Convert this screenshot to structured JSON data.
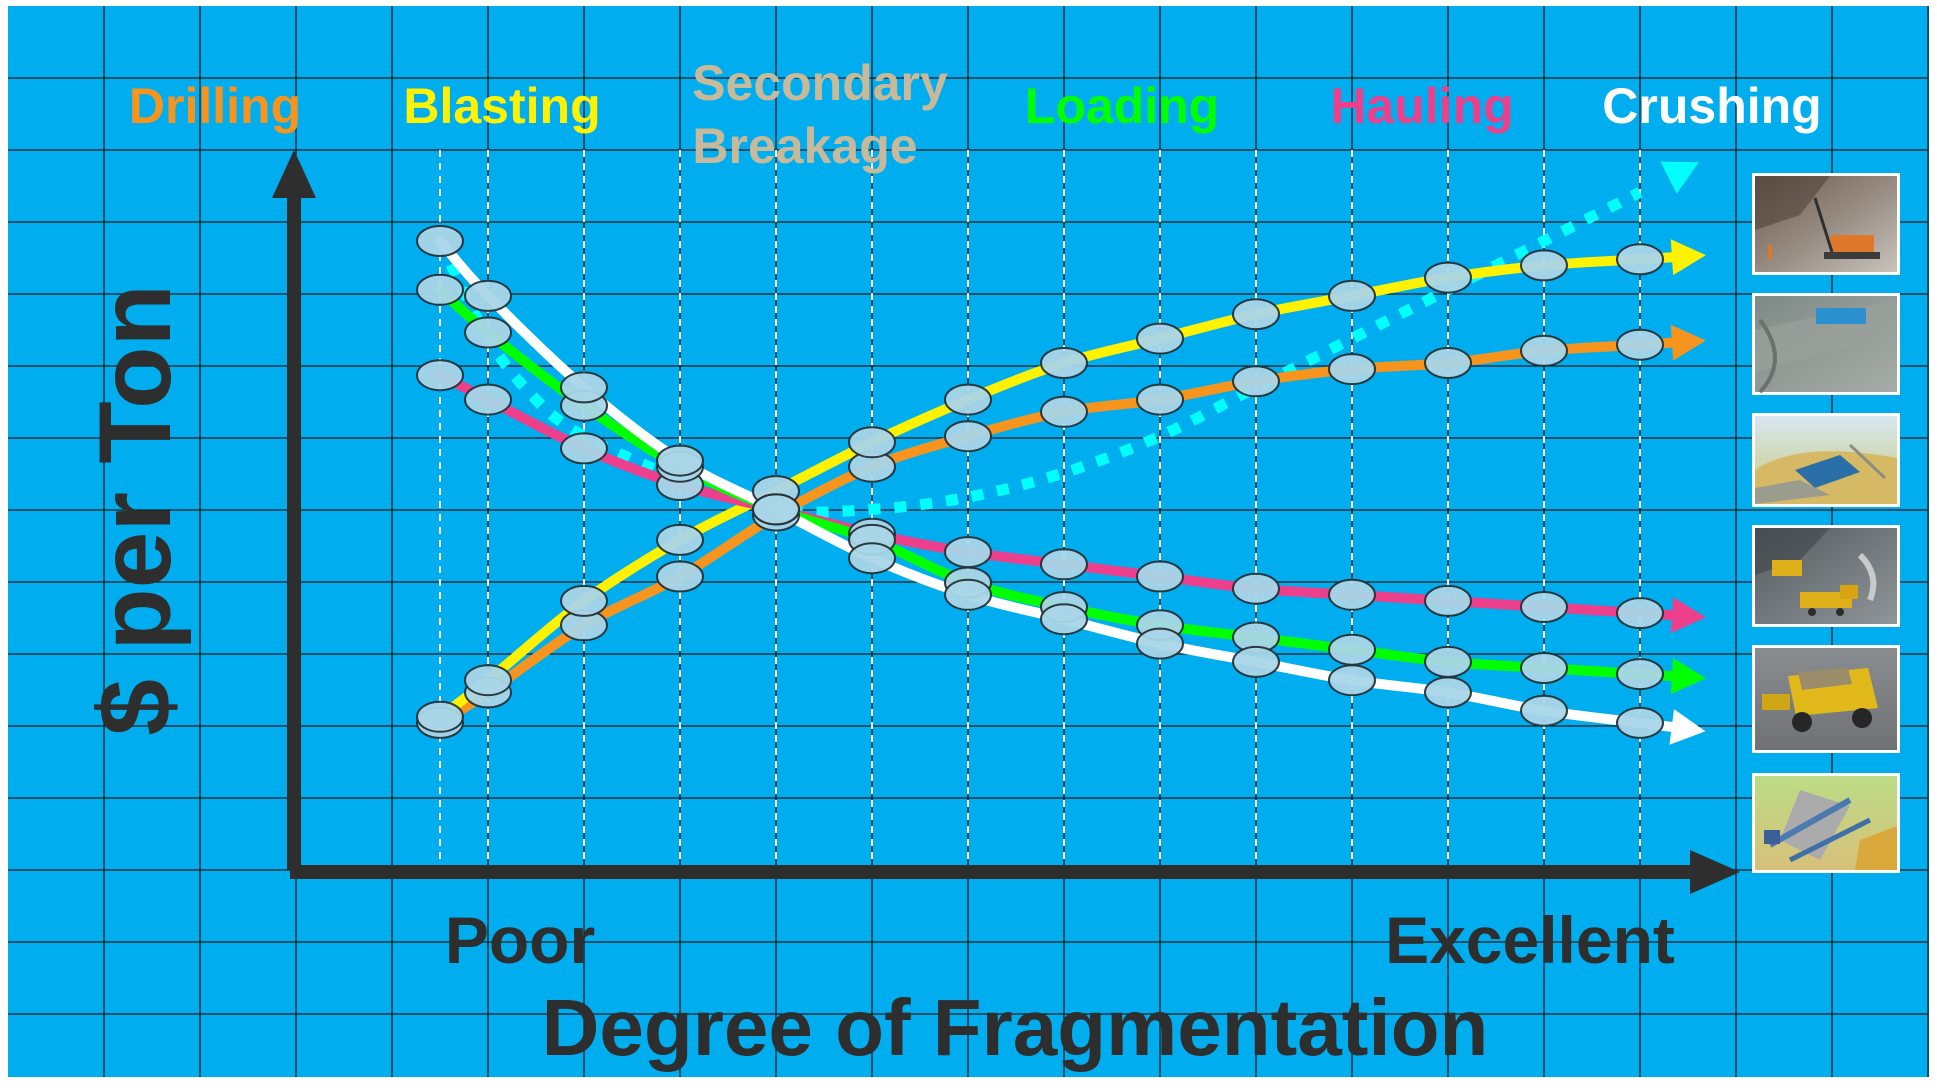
{
  "chart_data": {
    "type": "line",
    "ylabel": "$ per Ton",
    "xlabel": "Degree of Fragmentation",
    "x_tick_labels": {
      "low": "Poor",
      "high": "Excellent"
    },
    "x_scale": "ordinal fragmentation, 0 = poorest, 25 = most excellent",
    "y_scale": "relative cost, 0 = axis baseline, 10 = top of axis arrow",
    "xlim": [
      0,
      25
    ],
    "ylim": [
      0,
      10
    ],
    "grid": true,
    "marker": "ellipse",
    "background_color": "#00AEEF",
    "legend_placement": "top",
    "series": [
      {
        "name": "Drilling",
        "color": "#F7941D",
        "style": "solid",
        "points": [
          [
            0,
            1.1
          ],
          [
            1,
            1.6
          ],
          [
            3,
            2.7
          ],
          [
            5,
            3.5
          ],
          [
            7,
            4.5
          ],
          [
            9,
            5.3
          ],
          [
            11,
            5.8
          ],
          [
            13,
            6.2
          ],
          [
            15,
            6.4
          ],
          [
            17,
            6.7
          ],
          [
            19,
            6.9
          ],
          [
            21,
            7.0
          ],
          [
            23,
            7.2
          ],
          [
            25,
            7.3
          ]
        ]
      },
      {
        "name": "Blasting",
        "color": "#FFF200",
        "style": "solid",
        "points": [
          [
            0,
            1.2
          ],
          [
            1,
            1.8
          ],
          [
            3,
            3.1
          ],
          [
            5,
            4.1
          ],
          [
            7,
            4.9
          ],
          [
            9,
            5.7
          ],
          [
            11,
            6.4
          ],
          [
            13,
            7.0
          ],
          [
            15,
            7.4
          ],
          [
            17,
            7.8
          ],
          [
            19,
            8.1
          ],
          [
            21,
            8.4
          ],
          [
            23,
            8.6
          ],
          [
            25,
            8.7
          ]
        ]
      },
      {
        "name": "Secondary Breakage",
        "color": "#C8B99A",
        "style": "none",
        "points": []
      },
      {
        "name": "Loading",
        "color": "#00FF00",
        "style": "solid",
        "points": [
          [
            0,
            8.2
          ],
          [
            1,
            7.5
          ],
          [
            3,
            6.3
          ],
          [
            5,
            5.3
          ],
          [
            7,
            4.6
          ],
          [
            9,
            4.1
          ],
          [
            11,
            3.4
          ],
          [
            13,
            3.0
          ],
          [
            15,
            2.7
          ],
          [
            17,
            2.5
          ],
          [
            19,
            2.3
          ],
          [
            21,
            2.1
          ],
          [
            23,
            2.0
          ],
          [
            25,
            1.9
          ]
        ]
      },
      {
        "name": "Hauling",
        "color": "#EC3F8C",
        "style": "solid",
        "points": [
          [
            0,
            6.8
          ],
          [
            1,
            6.4
          ],
          [
            3,
            5.6
          ],
          [
            5,
            5.0
          ],
          [
            7,
            4.6
          ],
          [
            9,
            4.2
          ],
          [
            11,
            3.9
          ],
          [
            13,
            3.7
          ],
          [
            15,
            3.5
          ],
          [
            17,
            3.3
          ],
          [
            19,
            3.2
          ],
          [
            21,
            3.1
          ],
          [
            23,
            3.0
          ],
          [
            25,
            2.9
          ]
        ]
      },
      {
        "name": "Crushing",
        "color": "#FFFFFF",
        "style": "solid",
        "points": [
          [
            0,
            9.0
          ],
          [
            1,
            8.1
          ],
          [
            3,
            6.6
          ],
          [
            5,
            5.4
          ],
          [
            7,
            4.6
          ],
          [
            9,
            3.8
          ],
          [
            11,
            3.2
          ],
          [
            13,
            2.8
          ],
          [
            15,
            2.4
          ],
          [
            17,
            2.1
          ],
          [
            19,
            1.8
          ],
          [
            21,
            1.6
          ],
          [
            23,
            1.3
          ],
          [
            25,
            1.1
          ]
        ]
      },
      {
        "name": "",
        "color": "#00FFFF",
        "style": "dotted",
        "points": [
          [
            0,
            9.0
          ],
          [
            1,
            7.4
          ],
          [
            2,
            6.4
          ],
          [
            3,
            5.8
          ],
          [
            5,
            5.1
          ],
          [
            7,
            4.6
          ],
          [
            9,
            4.6
          ],
          [
            11,
            4.8
          ],
          [
            13,
            5.2
          ],
          [
            15,
            5.8
          ],
          [
            17,
            6.6
          ],
          [
            19,
            7.4
          ],
          [
            21,
            8.2
          ],
          [
            23,
            9.0
          ],
          [
            25,
            9.8
          ]
        ]
      }
    ],
    "markers_x": [
      0,
      1,
      3,
      5,
      7,
      9,
      11,
      13,
      15,
      17,
      19,
      21,
      23,
      25
    ]
  },
  "images": [
    {
      "icon": "drilling-rig-photo"
    },
    {
      "icon": "blasting-bench-photo"
    },
    {
      "icon": "secondary-breakage-photo"
    },
    {
      "icon": "loading-excavator-photo"
    },
    {
      "icon": "haul-truck-photo"
    },
    {
      "icon": "crusher-plant-photo"
    }
  ]
}
